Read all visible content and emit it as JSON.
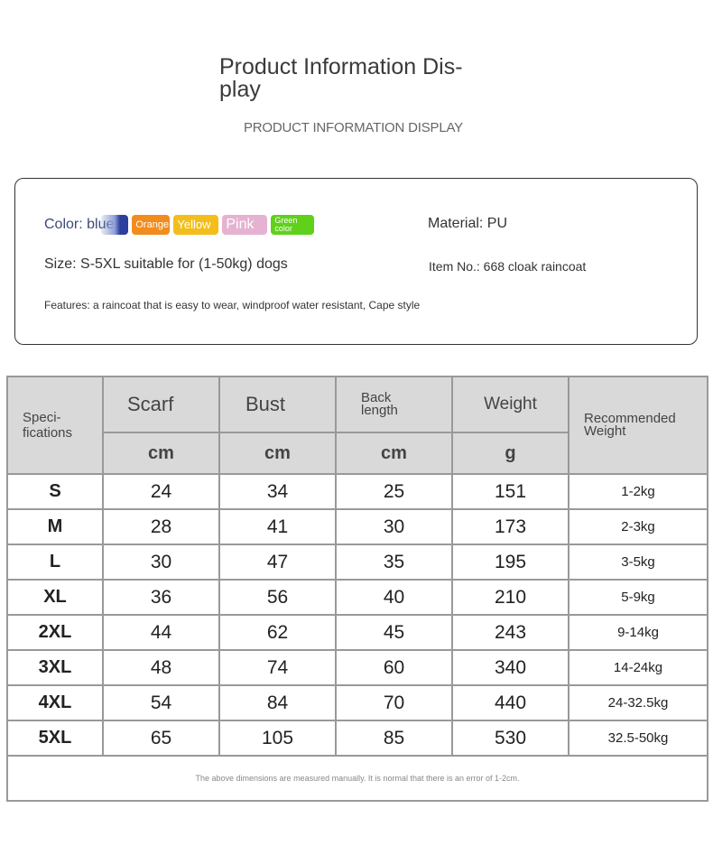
{
  "header": {
    "title": "Product Information Dis-play",
    "subtitle": "PRODUCT INFORMATION DISPLAY"
  },
  "info": {
    "color_label": "Color: blue",
    "colors": [
      {
        "label": "",
        "hex": "#2c3f9e"
      },
      {
        "label": "Orange",
        "hex": "#f28c1e"
      },
      {
        "label": "Yellow",
        "hex": "#f3be1c"
      },
      {
        "label": "Pink",
        "hex": "#e6b2d1"
      },
      {
        "label": "Green color",
        "hex": "#5fd11b"
      }
    ],
    "material": "Material: PU",
    "size": "Size: S-5XL suitable for (1-50kg) dogs",
    "item_no": "Item No.: 668 cloak raincoat",
    "features": "Features: a raincoat that is easy to wear, windproof water resistant, Cape style"
  },
  "table": {
    "spec_header": "Speci-fications",
    "columns": [
      {
        "label": "Scarf",
        "unit": "cm"
      },
      {
        "label": "Bust",
        "unit": "cm"
      },
      {
        "label": "Back length",
        "unit": "cm"
      },
      {
        "label": "Weight",
        "unit": "g"
      }
    ],
    "recommended_header": "Recommended Weight",
    "rows": [
      [
        "S",
        "24",
        "34",
        "25",
        "151",
        "1-2kg"
      ],
      [
        "M",
        "28",
        "41",
        "30",
        "173",
        "2-3kg"
      ],
      [
        "L",
        "30",
        "47",
        "35",
        "195",
        "3-5kg"
      ],
      [
        "XL",
        "36",
        "56",
        "40",
        "210",
        "5-9kg"
      ],
      [
        "2XL",
        "44",
        "62",
        "45",
        "243",
        "9-14kg"
      ],
      [
        "3XL",
        "48",
        "74",
        "60",
        "340",
        "14-24kg"
      ],
      [
        "4XL",
        "54",
        "84",
        "70",
        "440",
        "24-32.5kg"
      ],
      [
        "5XL",
        "65",
        "105",
        "85",
        "530",
        "32.5-50kg"
      ]
    ],
    "footnote": "The above dimensions are measured manually. It is normal that there is an error of 1-2cm."
  }
}
